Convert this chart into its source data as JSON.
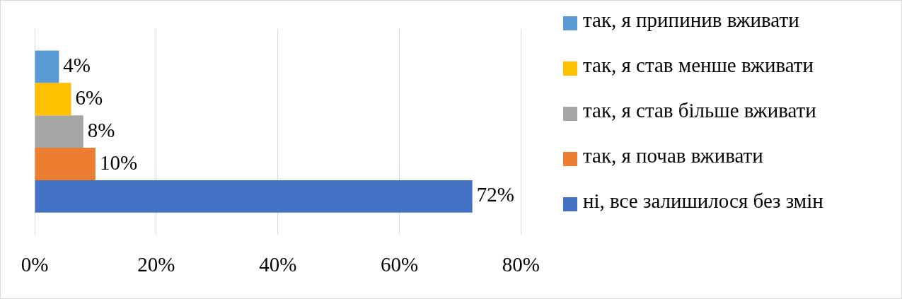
{
  "chart_data": {
    "type": "bar",
    "orientation": "horizontal",
    "categories": [
      null
    ],
    "series": [
      {
        "name": "ні, все залишилося без змін",
        "color": "#4472c4",
        "values": [
          72
        ],
        "value_labels": [
          "72%"
        ]
      },
      {
        "name": "так, я почав вживати",
        "color": "#ed7d31",
        "values": [
          10
        ],
        "value_labels": [
          "10%"
        ]
      },
      {
        "name": "так, я став більше вживати",
        "color": "#a5a5a5",
        "values": [
          8
        ],
        "value_labels": [
          "8%"
        ]
      },
      {
        "name": "так, я став менше вживати",
        "color": "#ffc000",
        "values": [
          6
        ],
        "value_labels": [
          "6%"
        ]
      },
      {
        "name": "так, я припинив вживати",
        "color": "#5b9bd5",
        "values": [
          4
        ],
        "value_labels": [
          "4%"
        ]
      }
    ],
    "xlim": [
      0,
      80
    ],
    "xticks": [
      {
        "value": 0,
        "label": "0%"
      },
      {
        "value": 20,
        "label": "20%"
      },
      {
        "value": 40,
        "label": "40%"
      },
      {
        "value": 60,
        "label": "60%"
      },
      {
        "value": 80,
        "label": "80%"
      }
    ],
    "grid": "x",
    "legend": "right"
  }
}
